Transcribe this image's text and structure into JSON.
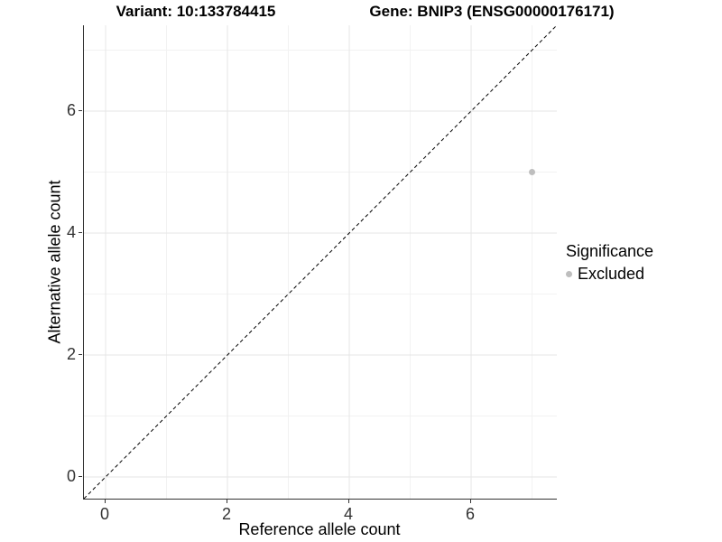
{
  "chart_data": {
    "type": "scatter",
    "title_variant": "Variant: 10:133784415",
    "title_gene": "Gene: BNIP3 (ENSG00000176171)",
    "xlabel": "Reference allele count",
    "ylabel": "Alternative allele count",
    "xlim": [
      -0.356,
      7.407
    ],
    "ylim": [
      -0.356,
      7.407
    ],
    "xticks": [
      0,
      2,
      4,
      6
    ],
    "yticks": [
      0,
      2,
      4,
      6
    ],
    "minor_xticks": [
      1,
      3,
      5,
      7
    ],
    "minor_yticks": [
      1,
      3,
      5,
      7
    ],
    "grid": true,
    "aspect": "equal",
    "series": [
      {
        "name": "Excluded",
        "color": "#BEBEBE",
        "points": [
          {
            "x": 7,
            "y": 5
          }
        ]
      }
    ],
    "reference_line": {
      "type": "identity",
      "equation": "y = x",
      "style": "dashed",
      "color": "#000000"
    },
    "legend": {
      "title": "Significance",
      "position": "right",
      "items": [
        {
          "label": "Excluded",
          "color": "#BEBEBE",
          "marker": "circle-icon"
        }
      ]
    },
    "colors": {
      "grid_major": "#E6E6E6",
      "grid_minor": "#F2F2F2",
      "axis_line": "#333333",
      "tick_text": "#333333",
      "title_text": "#000000"
    }
  }
}
